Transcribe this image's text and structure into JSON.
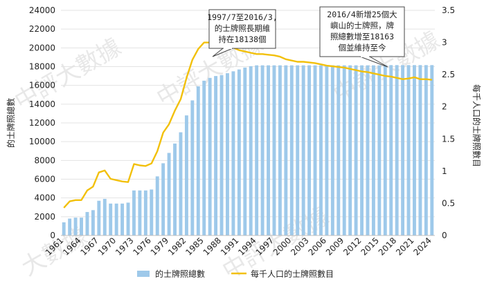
{
  "chart_data": {
    "type": "bar+line",
    "x_tick_labels": [
      "1961",
      "1964",
      "1967",
      "1970",
      "1973",
      "1976",
      "1979",
      "1982",
      "1985",
      "1988",
      "1991",
      "1994",
      "1997",
      "2000",
      "2003",
      "2006",
      "2009",
      "2012",
      "2015",
      "2018",
      "2021",
      "2024"
    ],
    "x": [
      1961,
      1962,
      1963,
      1964,
      1965,
      1966,
      1967,
      1968,
      1969,
      1970,
      1971,
      1972,
      1973,
      1974,
      1975,
      1976,
      1977,
      1978,
      1979,
      1980,
      1981,
      1982,
      1983,
      1984,
      1985,
      1986,
      1987,
      1988,
      1989,
      1990,
      1991,
      1992,
      1993,
      1994,
      1995,
      1996,
      1997,
      1998,
      1999,
      2000,
      2001,
      2002,
      2003,
      2004,
      2005,
      2006,
      2007,
      2008,
      2009,
      2010,
      2011,
      2012,
      2013,
      2014,
      2015,
      2016,
      2017,
      2018,
      2019,
      2020,
      2021,
      2022,
      2023,
      2024
    ],
    "series": [
      {
        "name": "的士牌照總數",
        "type": "bar",
        "axis": "left",
        "color": "#9ec9ea",
        "values": [
          1400,
          1800,
          1900,
          1900,
          2500,
          2700,
          3700,
          3900,
          3400,
          3400,
          3400,
          3500,
          4800,
          4800,
          4800,
          4900,
          6300,
          7700,
          8800,
          9800,
          11000,
          12800,
          14400,
          15900,
          16500,
          16800,
          17000,
          17100,
          17300,
          17500,
          17700,
          17900,
          18050,
          18138,
          18138,
          18138,
          18138,
          18138,
          18138,
          18138,
          18138,
          18138,
          18138,
          18138,
          18138,
          18138,
          18138,
          18138,
          18138,
          18138,
          18138,
          18138,
          18138,
          18138,
          18138,
          18163,
          18163,
          18163,
          18163,
          18163,
          18163,
          18163,
          18163,
          18163
        ]
      },
      {
        "name": "每千人口的士牌照數目",
        "type": "line",
        "axis": "right",
        "color": "#f2c00a",
        "values": [
          0.43,
          0.53,
          0.55,
          0.55,
          0.7,
          0.76,
          0.98,
          1.01,
          0.88,
          0.86,
          0.84,
          0.83,
          1.11,
          1.09,
          1.08,
          1.12,
          1.31,
          1.6,
          1.73,
          1.94,
          2.12,
          2.45,
          2.73,
          2.9,
          3.0,
          3.0,
          3.0,
          2.97,
          2.94,
          2.92,
          2.88,
          2.86,
          2.84,
          2.82,
          2.82,
          2.81,
          2.8,
          2.78,
          2.74,
          2.72,
          2.7,
          2.7,
          2.69,
          2.68,
          2.66,
          2.64,
          2.63,
          2.62,
          2.61,
          2.59,
          2.57,
          2.55,
          2.54,
          2.52,
          2.5,
          2.48,
          2.47,
          2.45,
          2.43,
          2.44,
          2.46,
          2.43,
          2.43,
          2.42
        ]
      }
    ],
    "y_left": {
      "label": "的士牌照總數",
      "min": 0,
      "max": 24000,
      "ticks": [
        0,
        2000,
        4000,
        6000,
        8000,
        10000,
        12000,
        14000,
        16000,
        18000,
        20000,
        22000,
        24000
      ]
    },
    "y_right": {
      "label": "每千人口的士牌照數目",
      "min": 0,
      "max": 3.5,
      "ticks": [
        "0",
        "0.5",
        "1",
        "1.5",
        "2",
        "2.5",
        "3",
        "3.5"
      ]
    },
    "grid": "horizontal",
    "legend_position": "bottom",
    "annotations": [
      {
        "id": "note1",
        "lines": [
          "1997/7至2016/3,",
          "的士牌照長期維",
          "持在18138個"
        ]
      },
      {
        "id": "note2",
        "lines": [
          "2016/4新增25個大",
          "嶼山的士牌照，牌",
          "照總數增至18163",
          "個並維持至今"
        ]
      }
    ],
    "watermark": [
      "中評大數據",
      "中評大數據",
      "中評大數據",
      "大數據",
      "中評大數據"
    ]
  }
}
